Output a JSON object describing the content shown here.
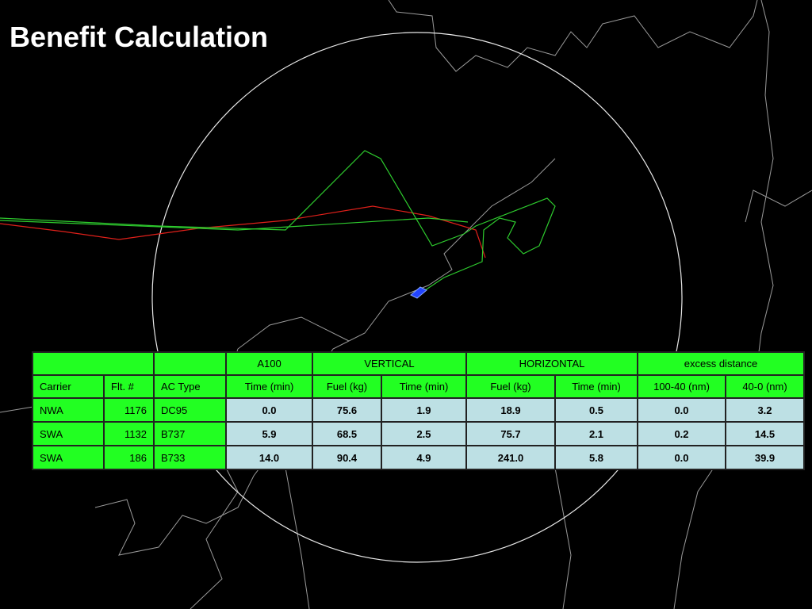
{
  "header": {
    "title": "Benefit Calculation"
  },
  "table": {
    "groups": [
      "A100",
      "VERTICAL",
      "HORIZONTAL",
      "excess distance"
    ],
    "columns": [
      "Carrier",
      "Flt. #",
      "AC Type",
      "Time (min)",
      "Fuel (kg)",
      "Time (min)",
      "Fuel (kg)",
      "Time (min)",
      "100-40 (nm)",
      "40-0 (nm)"
    ],
    "rows": [
      [
        "NWA",
        "1176",
        "DC95",
        "0.0",
        "75.6",
        "1.9",
        "18.9",
        "0.5",
        "0.0",
        "3.2"
      ],
      [
        "SWA",
        "1132",
        "B737",
        "5.9",
        "68.5",
        "2.5",
        "75.7",
        "2.1",
        "0.2",
        "14.5"
      ],
      [
        "SWA",
        "186",
        "B733",
        "14.0",
        "90.4",
        "4.9",
        "241.0",
        "5.8",
        "0.0",
        "39.9"
      ]
    ]
  }
}
